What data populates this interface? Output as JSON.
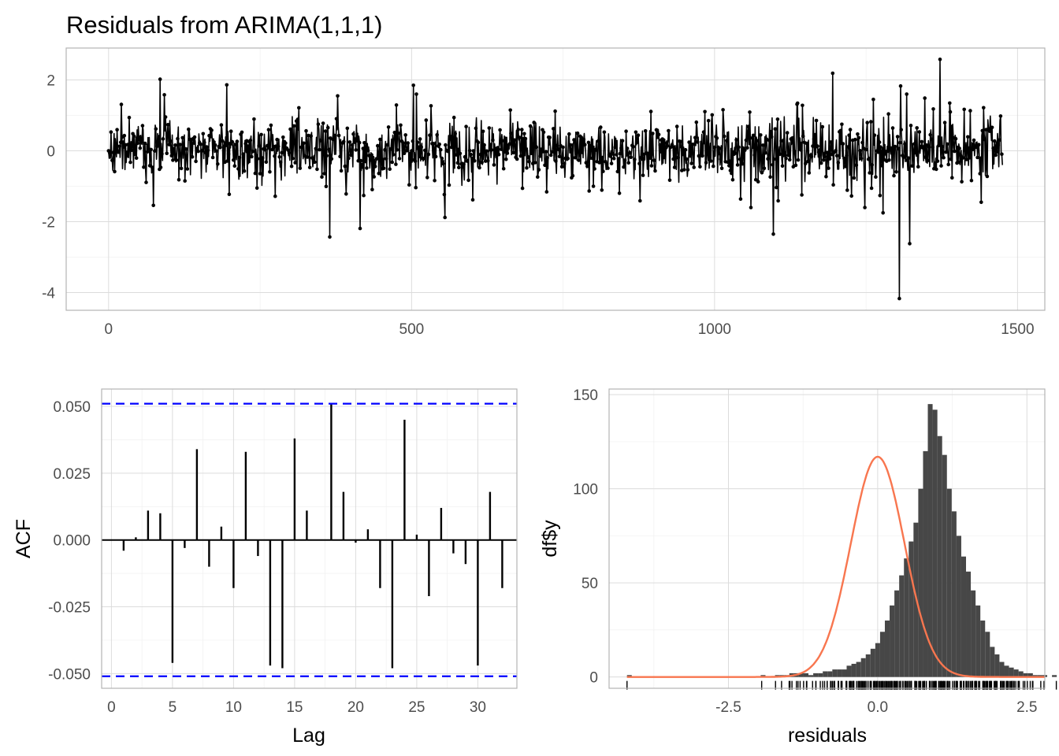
{
  "chart_data": [
    {
      "type": "line",
      "title": "Residuals from ARIMA(1,1,1)",
      "xlabel": "",
      "ylabel": "",
      "xlim": [
        -70,
        1545
      ],
      "ylim": [
        -4.5,
        2.9
      ],
      "x_ticks": [
        0,
        500,
        1000,
        1500
      ],
      "x_tick_labels": [
        "0",
        "500",
        "1000",
        "1500"
      ],
      "y_ticks": [
        -4,
        -2,
        0,
        2
      ],
      "y_tick_labels": [
        "-4",
        "-2",
        "0",
        "2"
      ],
      "n_points": 1476,
      "spikes": [
        {
          "x": 85,
          "y": 2.02
        },
        {
          "x": 195,
          "y": 1.86
        },
        {
          "x": 378,
          "y": 1.55
        },
        {
          "x": 365,
          "y": -2.43
        },
        {
          "x": 415,
          "y": -2.19
        },
        {
          "x": 503,
          "y": 1.85
        },
        {
          "x": 555,
          "y": -1.88
        },
        {
          "x": 1097,
          "y": -2.35
        },
        {
          "x": 1195,
          "y": 2.19
        },
        {
          "x": 1305,
          "y": -4.17
        },
        {
          "x": 1307,
          "y": 1.83
        },
        {
          "x": 1322,
          "y": -2.62
        },
        {
          "x": 1372,
          "y": 2.58
        },
        {
          "x": 1278,
          "y": -1.75
        }
      ],
      "grid": true
    },
    {
      "type": "bar",
      "xlabel": "Lag",
      "ylabel": "ACF",
      "x": [
        1,
        2,
        3,
        4,
        5,
        6,
        7,
        8,
        9,
        10,
        11,
        12,
        13,
        14,
        15,
        16,
        17,
        18,
        19,
        20,
        21,
        22,
        23,
        24,
        25,
        26,
        27,
        28,
        29,
        30,
        31,
        32
      ],
      "values": [
        -0.004,
        0.001,
        0.011,
        0.01,
        -0.046,
        -0.003,
        0.034,
        -0.01,
        0.005,
        -0.018,
        0.033,
        -0.006,
        -0.047,
        -0.048,
        0.038,
        0.011,
        0.0,
        0.051,
        0.018,
        -0.001,
        0.004,
        -0.018,
        -0.048,
        0.045,
        0.002,
        -0.021,
        0.012,
        -0.005,
        -0.009,
        -0.047,
        0.018,
        -0.018
      ],
      "confidence_limit": 0.051,
      "confidence_color": "#0000FF",
      "xlim": [
        -0.8,
        33.2
      ],
      "ylim": [
        -0.0555,
        0.0565
      ],
      "x_ticks": [
        0,
        5,
        10,
        15,
        20,
        25,
        30
      ],
      "x_tick_labels": [
        "0",
        "5",
        "10",
        "15",
        "20",
        "25",
        "30"
      ],
      "y_ticks": [
        -0.05,
        -0.025,
        0,
        0.025,
        0.05
      ],
      "y_tick_labels": [
        "-0.050",
        "-0.025",
        "0.000",
        "0.025",
        "0.050"
      ],
      "grid": true
    },
    {
      "type": "bar",
      "xlabel": "residuals",
      "ylabel": "df$y",
      "bin_width": 0.08,
      "bin_start": -4.2,
      "counts": [
        1,
        0,
        0,
        0,
        0,
        0,
        0,
        0,
        0,
        0,
        0,
        0,
        0,
        0,
        0,
        0,
        0,
        0,
        0,
        0,
        0,
        0,
        0,
        0,
        0,
        0,
        0,
        0,
        1,
        0,
        0,
        1,
        1,
        1,
        2,
        2,
        2,
        2,
        1,
        2,
        2,
        3,
        3,
        4,
        4,
        4,
        6,
        7,
        8,
        10,
        12,
        15,
        18,
        24,
        30,
        38,
        46,
        54,
        63,
        72,
        82,
        100,
        120,
        145,
        142,
        128,
        118,
        100,
        88,
        75,
        64,
        56,
        46,
        38,
        30,
        24,
        16,
        12,
        8,
        6,
        5,
        4,
        3,
        2,
        2,
        1,
        1,
        1,
        0,
        1,
        0,
        0,
        0,
        0,
        0,
        0,
        0,
        0,
        1
      ],
      "normal_curve": {
        "mean": 0.0,
        "sd": 0.45,
        "peak": 117,
        "color": "#F8764F"
      },
      "bar_color": "#474747",
      "xlim": [
        -4.5,
        2.8
      ],
      "ylim": [
        -6,
        153
      ],
      "x_ticks": [
        -2.5,
        0,
        2.5
      ],
      "x_tick_labels": [
        "-2.5",
        "0.0",
        "2.5"
      ],
      "y_ticks": [
        0,
        50,
        100,
        150
      ],
      "y_tick_labels": [
        "0",
        "50",
        "100",
        "150"
      ],
      "grid": true
    }
  ]
}
